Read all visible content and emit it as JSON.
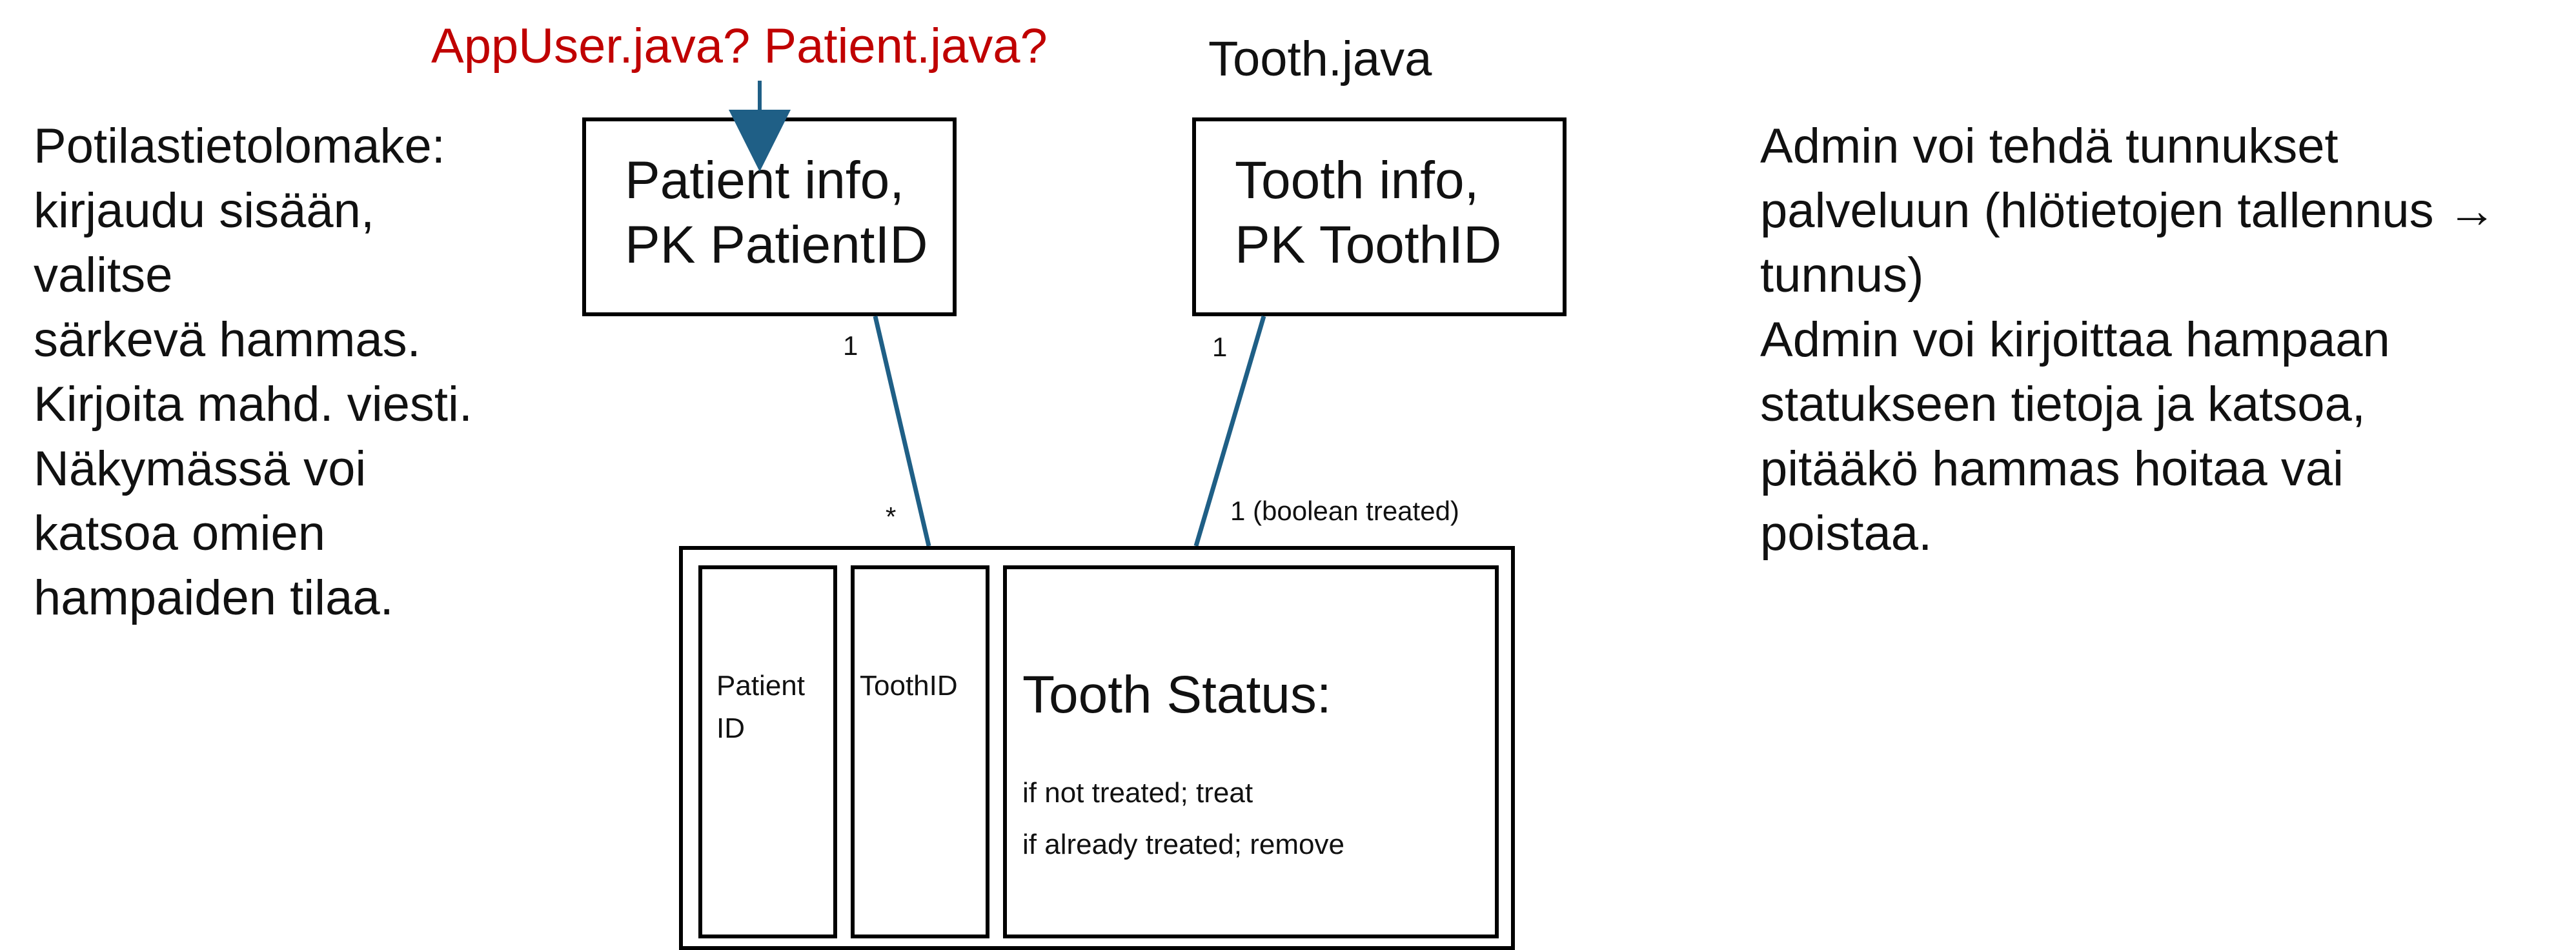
{
  "left_note_lines": [
    "Potilastietolomake:",
    "kirjaudu sisään,",
    "valitse",
    "särkevä hammas.",
    "Kirjoita mahd. viesti.",
    "Näkymässä voi",
    "katsoa omien",
    "hampaiden tilaa."
  ],
  "right_note_lines": [
    "Admin voi tehdä tunnukset",
    "palveluun (hlötietojen tallennus →",
    "tunnus)",
    "Admin voi kirjoittaa hampaan",
    "statukseen tietoja ja katsoa,",
    "pitääkö hammas hoitaa vai",
    "poistaa."
  ],
  "patient_box": {
    "line1": "Patient info,",
    "line2": "PK PatientID"
  },
  "tooth_box": {
    "line1": "Tooth info,",
    "line2": "PK ToothID"
  },
  "labels": {
    "red_question": "AppUser.java? Patient.java?",
    "tooth_java": "Tooth.java",
    "mult_patient_top": "1",
    "mult_patient_bottom": "*",
    "mult_tooth_top": "1",
    "mult_tooth_bottom": "1 (boolean treated)"
  },
  "status_table": {
    "col_patient_line1": "Patient",
    "col_patient_line2": "ID",
    "col_tooth": "ToothID",
    "status_title": "Tooth Status:",
    "status_line1": "if not treated; treat",
    "status_line2": "if already treated; remove"
  },
  "colors": {
    "red": "#c00000",
    "connector": "#1f5f86",
    "box_border": "#000000"
  }
}
